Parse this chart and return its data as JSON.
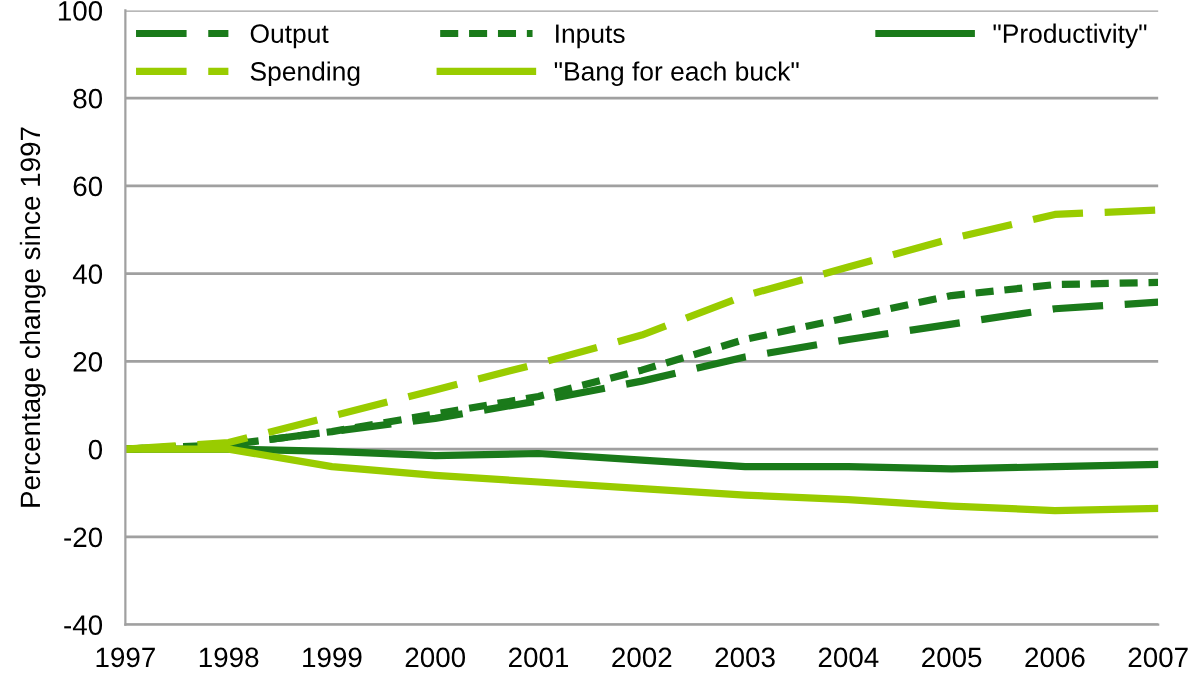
{
  "chart_data": {
    "type": "line",
    "ylabel": "Percentage change since 1997",
    "x": [
      1997,
      1998,
      1999,
      2000,
      2001,
      2002,
      2003,
      2004,
      2005,
      2006,
      2007
    ],
    "series": [
      {
        "name": "Output",
        "color": "#1a7a1a",
        "line_style": "dashed",
        "values": [
          0,
          1,
          4,
          7,
          11,
          15.5,
          21,
          25,
          28.5,
          32,
          33.5
        ]
      },
      {
        "name": "Inputs",
        "color": "#1a7a1a",
        "line_style": "dotted",
        "values": [
          0,
          1,
          4,
          8,
          12,
          18,
          25,
          30,
          35,
          37.5,
          38
        ]
      },
      {
        "name": "\"Productivity\"",
        "color": "#1a7a1a",
        "line_style": "solid",
        "values": [
          0,
          0,
          -0.5,
          -1.5,
          -1,
          -2.5,
          -4,
          -4,
          -4.5,
          -4,
          -3.5
        ]
      },
      {
        "name": "Spending",
        "color": "#99cc00",
        "line_style": "dashed",
        "values": [
          0,
          1.5,
          7.5,
          13.5,
          19.5,
          26,
          35,
          41.5,
          48,
          53.5,
          54.5
        ]
      },
      {
        "name": "\"Bang for each buck\"",
        "color": "#99cc00",
        "line_style": "solid",
        "values": [
          0,
          0,
          -4,
          -6,
          -7.5,
          -9,
          -10.5,
          -11.5,
          -13,
          -14,
          -13.5
        ]
      }
    ],
    "xlim": [
      1997,
      2007
    ],
    "xticks": [
      1997,
      1998,
      1999,
      2000,
      2001,
      2002,
      2003,
      2004,
      2005,
      2006,
      2007
    ],
    "ylim": [
      -40,
      100
    ],
    "yticks": [
      -40,
      -20,
      0,
      20,
      40,
      60,
      80,
      100
    ],
    "grid": "y",
    "legend": "top",
    "marker": "none"
  }
}
